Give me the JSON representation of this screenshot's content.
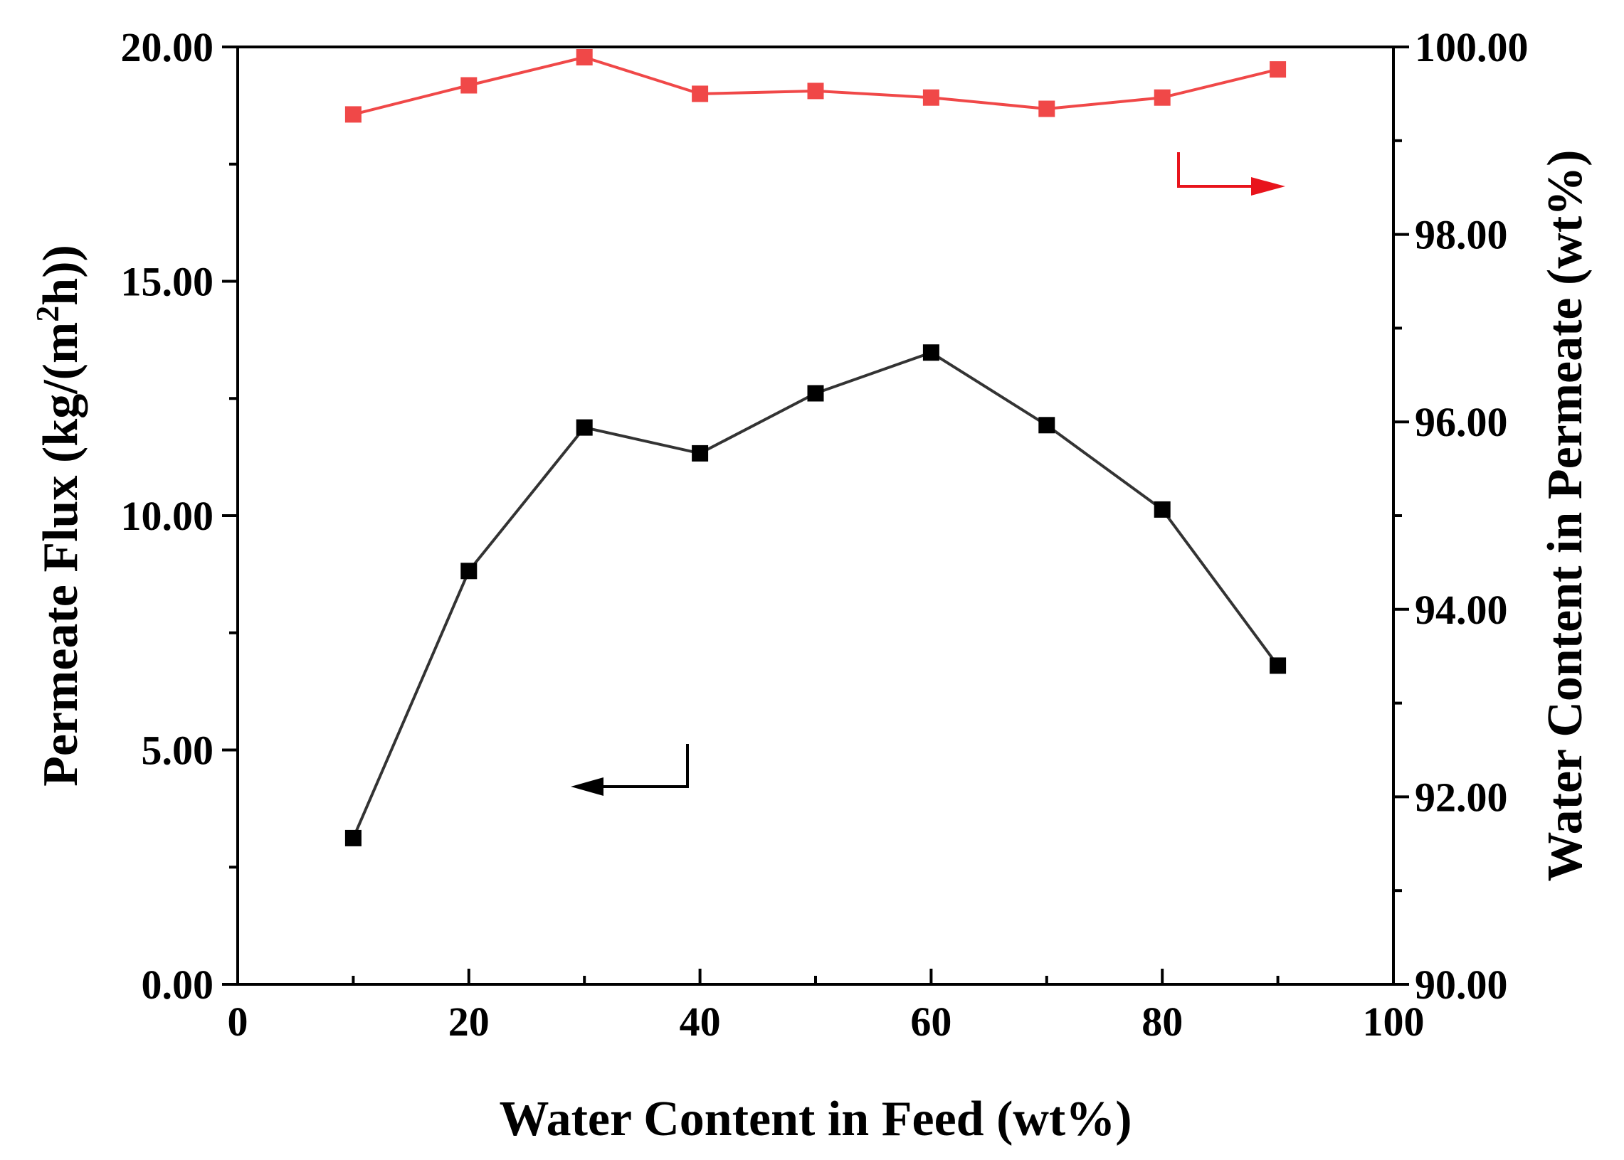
{
  "chart_data": {
    "type": "line",
    "title": "",
    "xlabel": "Water Content in Feed (wt%)",
    "ylabel": {
      "prefix": "Permeate Flux (kg/(m",
      "superscript": "2",
      "suffix": "h))"
    },
    "y2label": "Water Content in Permeate (wt%)",
    "xlim": [
      0,
      100
    ],
    "ylim": [
      0,
      20
    ],
    "y2lim": [
      90,
      100
    ],
    "xticks": [
      0,
      20,
      40,
      60,
      80,
      100
    ],
    "xtick_labels": [
      "0",
      "20",
      "40",
      "60",
      "80",
      "100"
    ],
    "yticks": [
      0,
      5,
      10,
      15,
      20
    ],
    "ytick_labels": [
      "0.00",
      "5.00",
      "10.00",
      "15.00",
      "20.00"
    ],
    "y2ticks": [
      90,
      92,
      94,
      96,
      98,
      100
    ],
    "y2tick_labels": [
      "90.00",
      "92.00",
      "94.00",
      "96.00",
      "98.00",
      "100.00"
    ],
    "x": [
      10,
      20,
      30,
      40,
      50,
      60,
      70,
      80,
      90
    ],
    "series": [
      {
        "name": "Permeate Flux",
        "axis": "left",
        "color": "#000000",
        "line_color": "#333333",
        "marker": "square",
        "values": [
          3.12,
          8.82,
          11.88,
          11.33,
          12.61,
          13.48,
          11.93,
          10.13,
          6.8
        ]
      },
      {
        "name": "Water Content in Permeate",
        "axis": "right",
        "color": "#f04848",
        "line_color": "#f04848",
        "marker": "square",
        "values": [
          99.28,
          99.59,
          99.89,
          99.5,
          99.53,
          99.46,
          99.34,
          99.46,
          99.76
        ]
      }
    ],
    "annotations": [
      {
        "type": "arrow",
        "direction": "left",
        "series": "Permeate Flux",
        "color": "#000000"
      },
      {
        "type": "arrow",
        "direction": "right",
        "series": "Water Content in Permeate",
        "color": "#e8141c"
      }
    ],
    "grid": false,
    "legend": "none"
  }
}
